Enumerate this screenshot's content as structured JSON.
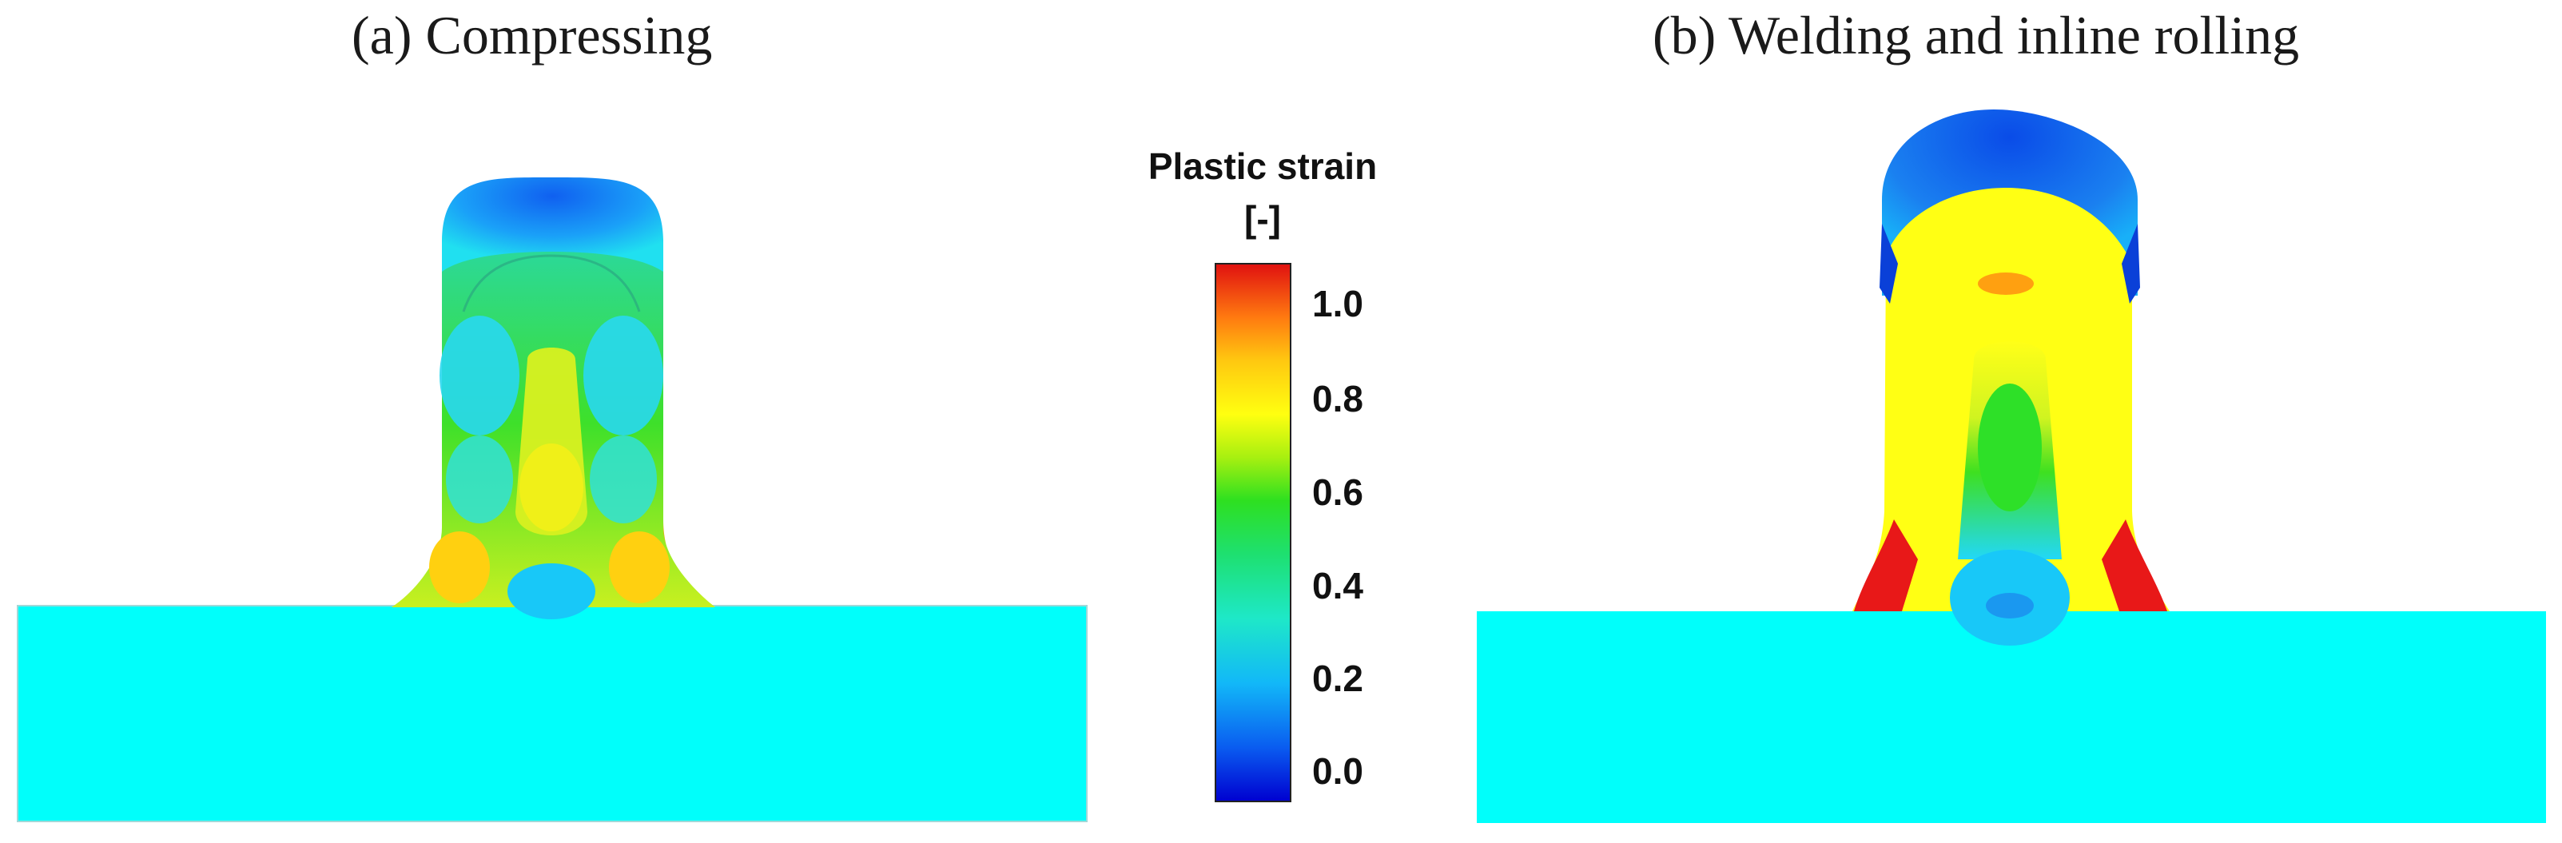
{
  "panels": [
    {
      "label": "(a) Compressing"
    },
    {
      "label": "(b) Welding and inline rolling"
    }
  ],
  "colorbar": {
    "title_line1": "Plastic strain",
    "title_line2": "[-]",
    "ticks": [
      "1.0",
      "0.8",
      "0.6",
      "0.4",
      "0.2",
      "0.0"
    ],
    "range": [
      0.0,
      1.1
    ],
    "colors": [
      "#0000d8",
      "#0a6cf0",
      "#18d8f8",
      "#1ae060",
      "#32d81a",
      "#c8f010",
      "#ffff10",
      "#ffc010",
      "#ff6a10",
      "#e81010"
    ]
  },
  "colors": {
    "base_plate": "#00fffb",
    "low_strain": "#1e78f0",
    "mid_strain": "#30e020",
    "high_strain": "#ffff14",
    "peak_strain": "#f01818"
  }
}
